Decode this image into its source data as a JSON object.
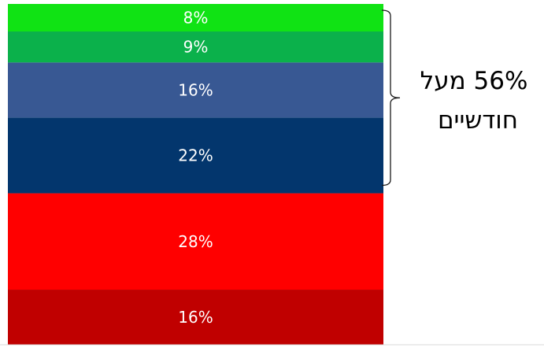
{
  "chart_data": {
    "type": "bar",
    "stacked": true,
    "orientation": "vertical",
    "segments": [
      {
        "label": "16%",
        "value": 16,
        "color": "#C00000"
      },
      {
        "label": "28%",
        "value": 28,
        "color": "#FF0000"
      },
      {
        "label": "22%",
        "value": 22,
        "color": "#03366D"
      },
      {
        "label": "16%",
        "value": 16,
        "color": "#385893"
      },
      {
        "label": "9%",
        "value": 9,
        "color": "#0BB14B"
      },
      {
        "label": "8%",
        "value": 8,
        "color": "#10E314"
      }
    ],
    "annotation": {
      "lines": [
        "56% מעל",
        "חודשיים"
      ],
      "bracket_covers": [
        "8%",
        "9%",
        "16%",
        "22%"
      ]
    },
    "title": "",
    "xlabel": "",
    "ylabel": "",
    "ylim": [
      0,
      100
    ],
    "grid": false,
    "legend": "none"
  }
}
